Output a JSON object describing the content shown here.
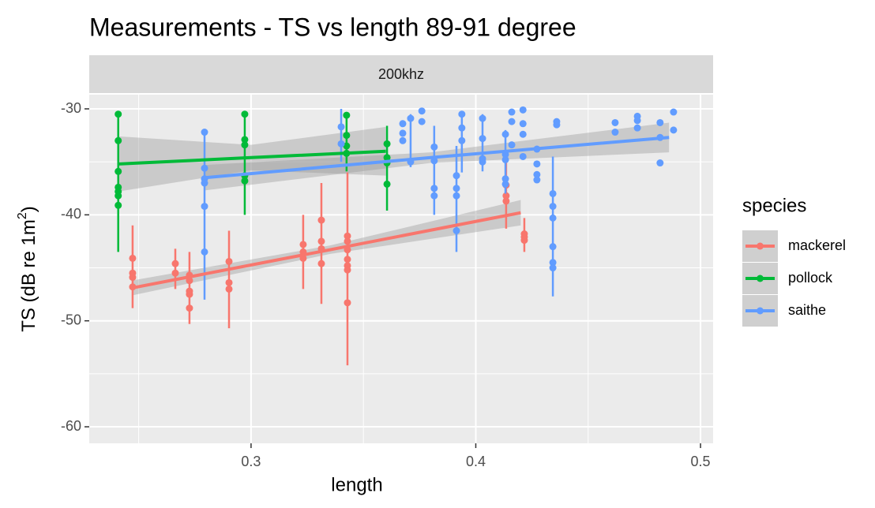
{
  "chart_data": {
    "type": "scatter",
    "title": "Measurements - TS vs length 89-91 degree",
    "facet_label": "200khz",
    "x_label": "length",
    "y_label": {
      "text": "TS (dB re 1m",
      "superscript": "2",
      "suffix": ")"
    },
    "legend_title": "species",
    "legend_position": "right",
    "grid": true,
    "xlim": [
      0.228,
      0.5056
    ],
    "ylim": [
      -61.56,
      -28.66
    ],
    "xticks": [
      0.3,
      0.4,
      0.5
    ],
    "minor_xticks": [
      0.25,
      0.35,
      0.45
    ],
    "yticks": [
      -30,
      -40,
      -50,
      -60
    ],
    "minor_yticks": [
      -35,
      -45,
      -55
    ],
    "series": [
      {
        "name": "mackerel",
        "color": "#F8766D",
        "x": [
          0.2473,
          0.2473,
          0.2473,
          0.2473,
          0.2663,
          0.2663,
          0.2726,
          0.2726,
          0.2726,
          0.2726,
          0.2726,
          0.2902,
          0.2902,
          0.2902,
          0.3232,
          0.3232,
          0.3232,
          0.3313,
          0.3313,
          0.3313,
          0.3313,
          0.3429,
          0.3429,
          0.3429,
          0.3429,
          0.3429,
          0.3429,
          0.3429,
          0.4135,
          0.4135,
          0.4135,
          0.4216,
          0.4216,
          0.4216
        ],
        "values": [
          -44.1,
          -45.5,
          -45.9,
          -46.8,
          -44.6,
          -45.5,
          -45.7,
          -46.2,
          -47.2,
          -47.5,
          -48.8,
          -44.4,
          -46.4,
          -47.0,
          -42.8,
          -43.5,
          -44.1,
          -40.5,
          -42.5,
          -43.2,
          -44.6,
          -42.0,
          -42.5,
          -43.3,
          -44.2,
          -44.8,
          -45.2,
          -48.3,
          -37.2,
          -38.2,
          -38.7,
          -41.8,
          -42.1,
          -42.4
        ],
        "errorbars": {
          "x": [
            0.2473,
            0.2663,
            0.2726,
            0.2902,
            0.3232,
            0.3313,
            0.3429,
            0.4135,
            0.4216
          ],
          "mean": [
            -44.9,
            -45.1,
            -46.9,
            -46.1,
            -43.5,
            -42.7,
            -45.1,
            -37.9,
            -41.9
          ],
          "sd": [
            3.9,
            1.9,
            3.4,
            4.6,
            3.5,
            5.7,
            9.1,
            3.4,
            1.6
          ]
        },
        "fit": {
          "x": [
            0.247,
            0.335,
            0.42
          ],
          "y": [
            -46.9,
            -43.3,
            -39.8
          ],
          "lower": [
            -47.6,
            -43.7,
            -41.0
          ],
          "upper": [
            -46.2,
            -42.9,
            -38.6
          ]
        }
      },
      {
        "name": "pollock",
        "color": "#00BA38",
        "x": [
          0.2409,
          0.2409,
          0.2409,
          0.2409,
          0.2409,
          0.2409,
          0.2409,
          0.2972,
          0.2972,
          0.2972,
          0.2972,
          0.2972,
          0.3425,
          0.3425,
          0.3425,
          0.3425,
          0.3605,
          0.3605,
          0.3605,
          0.3605
        ],
        "values": [
          -30.5,
          -33.0,
          -35.9,
          -37.4,
          -37.8,
          -38.2,
          -39.1,
          -30.5,
          -32.9,
          -33.4,
          -36.3,
          -36.8,
          -30.6,
          -32.5,
          -33.5,
          -34.2,
          -33.3,
          -34.6,
          -35.1,
          -37.1
        ],
        "errorbars": {
          "x": [
            0.2409,
            0.2972,
            0.3425,
            0.3605
          ],
          "mean": [
            -37.0,
            -35.2,
            -33.2,
            -35.6
          ],
          "sd": [
            6.5,
            4.8,
            2.7,
            4.0
          ]
        },
        "fit": {
          "x": [
            0.241,
            0.3,
            0.36
          ],
          "y": [
            -35.2,
            -34.6,
            -34.0
          ],
          "lower": [
            -37.8,
            -35.8,
            -36.3
          ],
          "upper": [
            -32.6,
            -33.4,
            -31.7
          ]
        }
      },
      {
        "name": "saithe",
        "color": "#619CFF",
        "x": [
          0.2793,
          0.2793,
          0.2793,
          0.2793,
          0.2793,
          0.2793,
          0.3401,
          0.3401,
          0.3675,
          0.3675,
          0.3675,
          0.371,
          0.371,
          0.376,
          0.376,
          0.3815,
          0.3815,
          0.3815,
          0.3815,
          0.3914,
          0.3914,
          0.3914,
          0.3914,
          0.3938,
          0.3938,
          0.3938,
          0.403,
          0.403,
          0.403,
          0.403,
          0.4132,
          0.4132,
          0.4132,
          0.4132,
          0.4132,
          0.416,
          0.416,
          0.416,
          0.421,
          0.421,
          0.421,
          0.421,
          0.4272,
          0.4272,
          0.4272,
          0.4272,
          0.4343,
          0.4343,
          0.4343,
          0.4343,
          0.4343,
          0.4343,
          0.436,
          0.436,
          0.462,
          0.462,
          0.4719,
          0.4719,
          0.4719,
          0.482,
          0.482,
          0.482,
          0.488,
          0.488
        ],
        "values": [
          -32.2,
          -35.6,
          -36.6,
          -37.0,
          -39.2,
          -43.5,
          -31.7,
          -33.3,
          -31.4,
          -32.3,
          -33.0,
          -30.9,
          -35.0,
          -30.2,
          -31.2,
          -33.6,
          -34.9,
          -37.5,
          -38.2,
          -36.3,
          -37.5,
          -38.2,
          -41.5,
          -30.5,
          -31.8,
          -33.0,
          -30.9,
          -32.8,
          -34.7,
          -35.0,
          -32.4,
          -34.3,
          -34.8,
          -36.6,
          -37.1,
          -30.3,
          -31.2,
          -33.4,
          -30.1,
          -31.4,
          -32.4,
          -34.5,
          -33.8,
          -35.2,
          -36.2,
          -36.7,
          -38.0,
          -39.2,
          -40.3,
          -43.0,
          -44.5,
          -45.0,
          -31.2,
          -31.5,
          -31.3,
          -32.2,
          -30.7,
          -31.1,
          -31.8,
          -31.3,
          -32.7,
          -35.1,
          -30.3,
          -32.0
        ],
        "errorbars": {
          "x": [
            0.2793,
            0.3401,
            0.371,
            0.3815,
            0.3914,
            0.3938,
            0.403,
            0.4132,
            0.4343
          ],
          "mean": [
            -40.0,
            -32.5,
            -33.0,
            -35.8,
            -38.5,
            -33.2,
            -33.2,
            -35.0,
            -41.1
          ],
          "sd": [
            8.0,
            2.5,
            2.5,
            4.2,
            5.0,
            2.8,
            2.7,
            3.0,
            6.6
          ]
        },
        "fit": {
          "x": [
            0.279,
            0.38,
            0.486
          ],
          "y": [
            -36.5,
            -34.6,
            -32.7
          ],
          "lower": [
            -37.7,
            -35.1,
            -34.1
          ],
          "upper": [
            -35.3,
            -34.1,
            -31.3
          ]
        }
      }
    ]
  }
}
